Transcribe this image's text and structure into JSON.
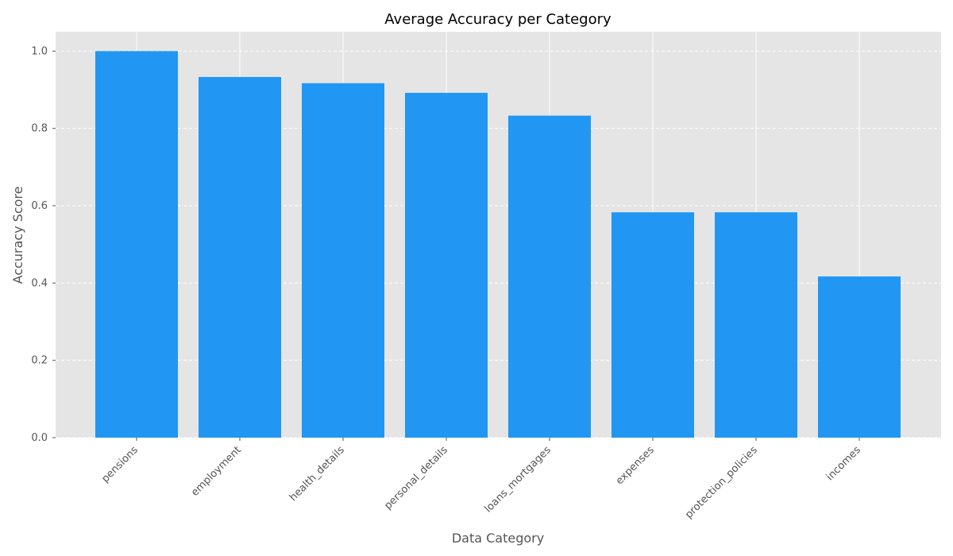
{
  "chart_data": {
    "type": "bar",
    "title": "Average Accuracy per Category",
    "xlabel": "Data Category",
    "ylabel": "Accuracy Score",
    "categories": [
      "pensions",
      "employment",
      "health_details",
      "personal_details",
      "loans_mortgages",
      "expenses",
      "protection_policies",
      "incomes"
    ],
    "values": [
      1.0,
      0.933,
      0.917,
      0.892,
      0.833,
      0.583,
      0.583,
      0.417
    ],
    "ylim": [
      0,
      1.05
    ],
    "yticks": [
      "0.0",
      "0.2",
      "0.4",
      "0.6",
      "0.8",
      "1.0"
    ],
    "grid": true,
    "bar_color": "#2196F3",
    "plot_background": "#E5E5E5"
  }
}
